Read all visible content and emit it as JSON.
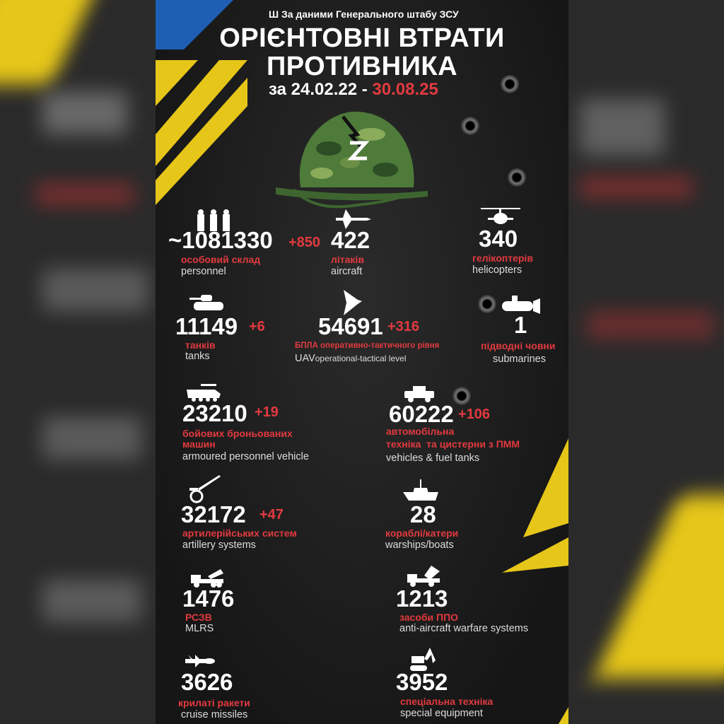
{
  "header": {
    "source": "За даними Генерального штабу ЗСУ",
    "source_icon": "trident-icon",
    "title_line1": "ОРІЄНТОВНІ ВТРАТИ",
    "title_line2": "ПРОТИВНИКА",
    "date_prefix": "за 24.02.22 -",
    "date_end": "30.08.25"
  },
  "colors": {
    "accent_red": "#e23a3f",
    "yellow": "#e6c619",
    "blue": "#1e5fb4",
    "background": "#1a1a1a"
  },
  "stats": [
    {
      "id": "personnel",
      "icon": "soldiers-icon",
      "value": "~1081330",
      "increase": "+850",
      "label_ua": "особовий склад",
      "label_en": "personnel"
    },
    {
      "id": "aircraft",
      "icon": "jet-icon",
      "value": "422",
      "increase": "",
      "label_ua": "літаків",
      "label_en": "aircraft"
    },
    {
      "id": "helicopters",
      "icon": "helicopter-icon",
      "value": "340",
      "increase": "",
      "label_ua": "гелікоптерів",
      "label_en": "helicopters"
    },
    {
      "id": "tanks",
      "icon": "tank-icon",
      "value": "11149",
      "increase": "+6",
      "label_ua": "танків",
      "label_en": "tanks"
    },
    {
      "id": "uav",
      "icon": "drone-icon",
      "value": "54691",
      "increase": "+316",
      "label_ua": "БПЛА оперативно-тактичного рівня",
      "label_en": "UAV",
      "label_en2": "operational-tactical level"
    },
    {
      "id": "submarines",
      "icon": "submarine-icon",
      "value": "1",
      "increase": "",
      "label_ua": "підводні човни",
      "label_en": "submarines"
    },
    {
      "id": "apv",
      "icon": "apc-icon",
      "value": "23210",
      "increase": "+19",
      "label_ua": "бойових броньованих",
      "label_ua2": "машин",
      "label_en": "armoured personnel vehicle"
    },
    {
      "id": "vehicles",
      "icon": "humvee-icon",
      "value": "60222",
      "increase": "+106",
      "label_ua": "автомобільна",
      "label_ua2": "техніка  та цистерни з ПММ",
      "label_en": "vehicles & fuel tanks"
    },
    {
      "id": "artillery",
      "icon": "howitzer-icon",
      "value": "32172",
      "increase": "+47",
      "label_ua": "артилерійських систем",
      "label_en": "artillery systems"
    },
    {
      "id": "warships",
      "icon": "warship-icon",
      "value": "28",
      "increase": "",
      "label_ua": "кораблі/катери",
      "label_en": "warships/boats"
    },
    {
      "id": "mlrs",
      "icon": "mlrs-truck-icon",
      "value": "1476",
      "increase": "",
      "label_ua": "РСЗВ",
      "label_en": "MLRS"
    },
    {
      "id": "air_defense",
      "icon": "air-defense-truck-icon",
      "value": "1213",
      "increase": "",
      "label_ua": "засоби ППО",
      "label_en": "anti-aircraft warfare systems"
    },
    {
      "id": "cruise_missiles",
      "icon": "missile-icon",
      "value": "3626",
      "increase": "",
      "label_ua": "крилаті ракети",
      "label_en": "cruise missiles"
    },
    {
      "id": "special_equipment",
      "icon": "excavator-icon",
      "value": "3952",
      "increase": "",
      "label_ua": "спеціальна техніка",
      "label_en": "special equipment"
    }
  ]
}
